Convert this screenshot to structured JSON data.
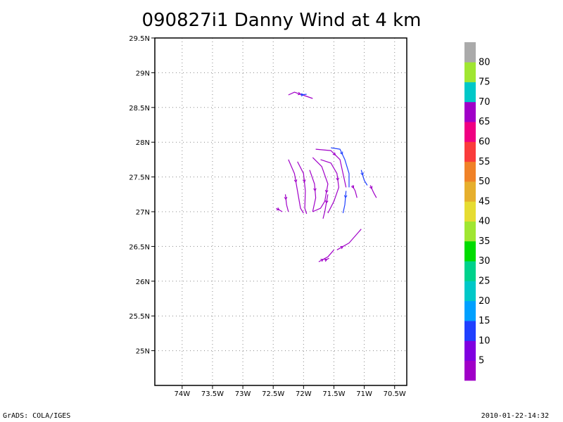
{
  "chart_data": {
    "type": "scatter",
    "title": "090827i1 Danny Wind at 4 km",
    "xlabel": "",
    "ylabel": "",
    "xlim": [
      -74.45,
      -70.3
    ],
    "ylim": [
      24.5,
      29.5
    ],
    "x_ticks": [
      {
        "value": -74.0,
        "label": "74W"
      },
      {
        "value": -73.5,
        "label": "73.5W"
      },
      {
        "value": -73.0,
        "label": "73W"
      },
      {
        "value": -72.5,
        "label": "72.5W"
      },
      {
        "value": -72.0,
        "label": "72W"
      },
      {
        "value": -71.5,
        "label": "71.5W"
      },
      {
        "value": -71.0,
        "label": "71W"
      },
      {
        "value": -70.5,
        "label": "70.5W"
      }
    ],
    "y_ticks": [
      {
        "value": 25.0,
        "label": "25N"
      },
      {
        "value": 25.5,
        "label": "25.5N"
      },
      {
        "value": 26.0,
        "label": "26N"
      },
      {
        "value": 26.5,
        "label": "26.5N"
      },
      {
        "value": 27.0,
        "label": "27N"
      },
      {
        "value": 27.5,
        "label": "27.5N"
      },
      {
        "value": 28.0,
        "label": "28N"
      },
      {
        "value": 28.5,
        "label": "28.5N"
      },
      {
        "value": 29.0,
        "label": "29N"
      },
      {
        "value": 29.5,
        "label": "29.5N"
      }
    ],
    "grid": true,
    "colorbar": {
      "labels": [
        "5",
        "10",
        "15",
        "20",
        "25",
        "30",
        "35",
        "40",
        "45",
        "50",
        "55",
        "60",
        "65",
        "70",
        "75",
        "80"
      ],
      "colors": [
        "#a000c8",
        "#8000e0",
        "#2040ff",
        "#00a0ff",
        "#00c8c8",
        "#00d28c",
        "#00dc00",
        "#a0e632",
        "#e6dc32",
        "#e6af2d",
        "#f08228",
        "#fa3c3c",
        "#f00082",
        "#a000c8",
        "#00c8c8",
        "#a0e632",
        "#aaaaaa"
      ]
    },
    "series": [
      {
        "color": "#a000c8",
        "points": [
          [
            -72.25,
            28.68
          ],
          [
            -72.15,
            28.72
          ],
          [
            -71.95,
            28.66
          ],
          [
            -71.85,
            28.63
          ]
        ]
      },
      {
        "color": "#2040ff",
        "points": [
          [
            -72.05,
            28.68
          ],
          [
            -71.95,
            28.69
          ]
        ]
      },
      {
        "color": "#a000c8",
        "points": [
          [
            -72.45,
            27.05
          ],
          [
            -72.35,
            27.0
          ]
        ]
      },
      {
        "color": "#a000c8",
        "points": [
          [
            -72.3,
            27.25
          ],
          [
            -72.28,
            27.1
          ],
          [
            -72.25,
            27.0
          ]
        ]
      },
      {
        "color": "#a000c8",
        "points": [
          [
            -72.25,
            27.75
          ],
          [
            -72.15,
            27.55
          ],
          [
            -72.1,
            27.3
          ],
          [
            -72.05,
            27.05
          ],
          [
            -72.0,
            26.98
          ]
        ]
      },
      {
        "color": "#a000c8",
        "points": [
          [
            -72.1,
            27.72
          ],
          [
            -72.0,
            27.55
          ],
          [
            -71.97,
            27.3
          ],
          [
            -71.98,
            27.05
          ],
          [
            -71.95,
            26.97
          ]
        ]
      },
      {
        "color": "#a000c8",
        "points": [
          [
            -71.9,
            27.6
          ],
          [
            -71.82,
            27.4
          ],
          [
            -71.8,
            27.2
          ],
          [
            -71.85,
            27.0
          ]
        ]
      },
      {
        "color": "#a000c8",
        "points": [
          [
            -71.85,
            27.78
          ],
          [
            -71.7,
            27.65
          ],
          [
            -71.6,
            27.4
          ],
          [
            -71.65,
            27.15
          ],
          [
            -71.72,
            27.05
          ],
          [
            -71.85,
            27.0
          ]
        ]
      },
      {
        "color": "#a000c8",
        "points": [
          [
            -71.72,
            27.75
          ],
          [
            -71.55,
            27.7
          ],
          [
            -71.45,
            27.55
          ],
          [
            -71.42,
            27.35
          ],
          [
            -71.5,
            27.15
          ],
          [
            -71.6,
            26.98
          ]
        ]
      },
      {
        "color": "#a000c8",
        "points": [
          [
            -71.8,
            27.9
          ],
          [
            -71.55,
            27.88
          ],
          [
            -71.4,
            27.75
          ],
          [
            -71.35,
            27.55
          ],
          [
            -71.3,
            27.35
          ]
        ]
      },
      {
        "color": "#2040ff",
        "points": [
          [
            -71.55,
            27.92
          ],
          [
            -71.4,
            27.9
          ],
          [
            -71.32,
            27.75
          ],
          [
            -71.25,
            27.55
          ],
          [
            -71.25,
            27.35
          ]
        ]
      },
      {
        "color": "#2040ff",
        "points": [
          [
            -71.3,
            27.3
          ],
          [
            -71.32,
            27.1
          ],
          [
            -71.35,
            26.98
          ]
        ]
      },
      {
        "color": "#a000c8",
        "points": [
          [
            -71.6,
            27.25
          ],
          [
            -71.65,
            27.0
          ],
          [
            -71.68,
            26.9
          ]
        ]
      },
      {
        "color": "#2040ff",
        "points": [
          [
            -71.05,
            27.6
          ],
          [
            -71.0,
            27.45
          ],
          [
            -70.95,
            27.38
          ]
        ]
      },
      {
        "color": "#a000c8",
        "points": [
          [
            -70.9,
            27.38
          ],
          [
            -70.85,
            27.28
          ],
          [
            -70.8,
            27.2
          ]
        ]
      },
      {
        "color": "#a000c8",
        "points": [
          [
            -71.2,
            27.38
          ],
          [
            -71.15,
            27.3
          ],
          [
            -71.12,
            27.2
          ]
        ]
      },
      {
        "color": "#a000c8",
        "points": [
          [
            -71.75,
            26.28
          ],
          [
            -71.6,
            26.35
          ],
          [
            -71.5,
            26.45
          ]
        ]
      },
      {
        "color": "#a000c8",
        "points": [
          [
            -71.45,
            26.45
          ],
          [
            -71.25,
            26.55
          ],
          [
            -71.05,
            26.75
          ]
        ]
      },
      {
        "color": "#a000c8",
        "points": [
          [
            -71.65,
            26.3
          ],
          [
            -71.58,
            26.33
          ]
        ]
      }
    ]
  },
  "footer": {
    "left": "GrADS: COLA/IGES",
    "right": "2010-01-22-14:32"
  }
}
